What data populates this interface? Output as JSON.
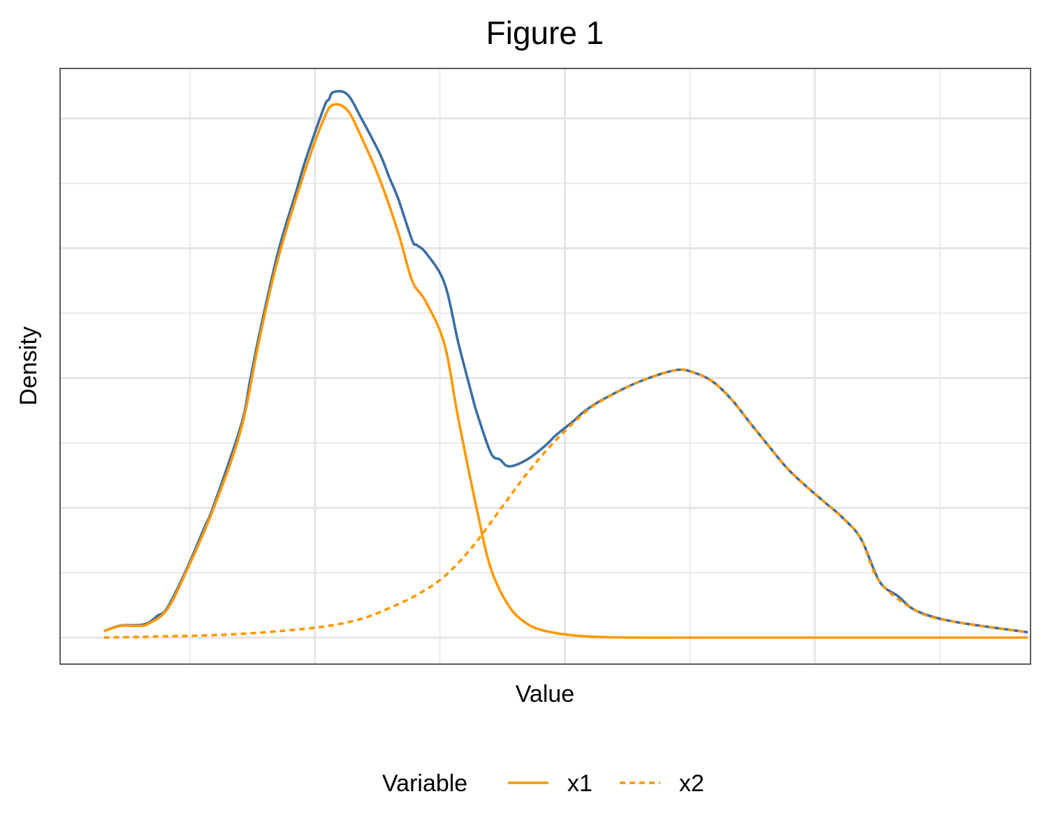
{
  "chart_data": {
    "type": "line",
    "title": "Figure 1",
    "xlabel": "Value",
    "ylabel": "Density",
    "xlim": [
      0,
      100
    ],
    "ylim": [
      0,
      1
    ],
    "grid": true,
    "tick_labels_shown": false,
    "legend": {
      "title": "Variable",
      "position": "bottom",
      "entries": [
        {
          "name": "x1",
          "linetype": "solid"
        },
        {
          "name": "x2",
          "linetype": "dotted"
        }
      ]
    },
    "colors": {
      "total": "#3a6ea5",
      "component": "#ff9800",
      "grid": "#e5e5e5",
      "border": "#333333"
    },
    "series": [
      {
        "name": "x1",
        "linetype": "solid",
        "color": "#ff9800",
        "x": [
          4.2,
          6,
          8,
          9,
          11,
          13,
          16,
          19,
          21,
          23,
          26,
          28,
          29,
          30.5,
          32,
          34,
          36,
          37.5,
          39,
          41,
          42.5,
          44.5,
          46,
          48,
          50,
          52,
          55,
          58,
          62,
          66,
          70,
          75,
          80,
          90,
          104
        ],
        "y": [
          0.012,
          0.022,
          0.022,
          0.026,
          0.052,
          0.12,
          0.24,
          0.39,
          0.56,
          0.71,
          0.88,
          0.975,
          1.0,
          0.99,
          0.94,
          0.86,
          0.76,
          0.67,
          0.63,
          0.55,
          0.41,
          0.24,
          0.13,
          0.058,
          0.025,
          0.012,
          0.004,
          0.001,
          0.0,
          0.0,
          0.0,
          0.0,
          0.0,
          0.0,
          0.0
        ]
      },
      {
        "name": "x2",
        "linetype": "dotted",
        "color": "#ff9800",
        "x": [
          4.2,
          10,
          15,
          20,
          25,
          28.5,
          32,
          35,
          38,
          41,
          44,
          47,
          50,
          53,
          56,
          58,
          62,
          66,
          68,
          70,
          72,
          74,
          76,
          78,
          80,
          82,
          84,
          86,
          88,
          92,
          96,
          104
        ],
        "y": [
          0.0,
          0.002,
          0.004,
          0.008,
          0.015,
          0.022,
          0.035,
          0.055,
          0.08,
          0.115,
          0.17,
          0.24,
          0.31,
          0.37,
          0.42,
          0.445,
          0.48,
          0.502,
          0.497,
          0.48,
          0.447,
          0.403,
          0.36,
          0.318,
          0.285,
          0.255,
          0.225,
          0.185,
          0.105,
          0.05,
          0.03,
          0.01
        ]
      }
    ]
  }
}
